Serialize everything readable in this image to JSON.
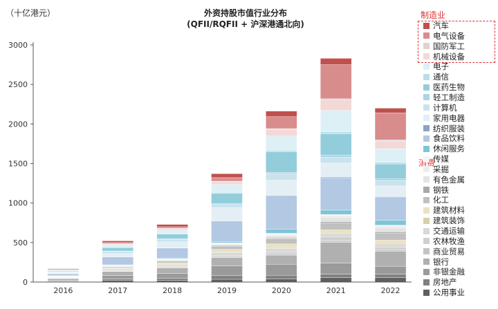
{
  "unit_label": "（十亿港元）",
  "title_line1": "外资持股市值行业分布",
  "title_line2": "(QFII/RQFII + 沪深港通北向)",
  "groups": {
    "manufacturing": "制造业",
    "consumer": "消费"
  },
  "chart_data": {
    "type": "bar",
    "stacked": true,
    "title": "外资持股市值行业分布 (QFII/RQFII + 沪深港通北向)",
    "ylabel": "（十亿港元）",
    "ylim": [
      0,
      3000
    ],
    "yticks": [
      0,
      500,
      1000,
      1500,
      2000,
      2500,
      3000
    ],
    "categories": [
      "2016",
      "2017",
      "2018",
      "2019",
      "2020",
      "2021",
      "2022"
    ],
    "series": [
      {
        "name": "公用事业",
        "color": "#5f5f5f",
        "values": [
          6,
          20,
          22,
          35,
          40,
          55,
          55
        ]
      },
      {
        "name": "房地产",
        "color": "#808080",
        "values": [
          5,
          18,
          25,
          45,
          45,
          45,
          45
        ]
      },
      {
        "name": "非银金融",
        "color": "#9a9a9a",
        "values": [
          12,
          45,
          60,
          125,
          140,
          140,
          100
        ]
      },
      {
        "name": "银行",
        "color": "#b0b0b0",
        "values": [
          20,
          50,
          70,
          105,
          115,
          260,
          190
        ]
      },
      {
        "name": "商业贸易",
        "color": "#c4c4c4",
        "values": [
          3,
          6,
          8,
          10,
          15,
          20,
          15
        ]
      },
      {
        "name": "农林牧渔",
        "color": "#d0d0d0",
        "values": [
          3,
          8,
          10,
          18,
          25,
          50,
          35
        ]
      },
      {
        "name": "交通运输",
        "color": "#d8d8d8",
        "values": [
          6,
          15,
          22,
          35,
          45,
          35,
          35
        ]
      },
      {
        "name": "建筑装饰",
        "color": "#d6cfa8",
        "values": [
          3,
          6,
          8,
          10,
          12,
          15,
          15
        ]
      },
      {
        "name": "建筑材料",
        "color": "#e8e2c4",
        "values": [
          5,
          10,
          18,
          30,
          45,
          40,
          40
        ]
      },
      {
        "name": "化工",
        "color": "#c0c0c0",
        "values": [
          5,
          12,
          20,
          40,
          65,
          90,
          90
        ]
      },
      {
        "name": "钢铁",
        "color": "#a8a8a8",
        "values": [
          3,
          6,
          8,
          8,
          10,
          15,
          15
        ]
      },
      {
        "name": "有色金属",
        "color": "#e4e4e4",
        "values": [
          3,
          6,
          8,
          15,
          30,
          55,
          55
        ]
      },
      {
        "name": "采掘",
        "color": "#ededed",
        "values": [
          2,
          5,
          8,
          10,
          15,
          20,
          20
        ]
      },
      {
        "name": "传媒",
        "color": "#f4f4f4",
        "values": [
          2,
          6,
          8,
          10,
          15,
          15,
          10
        ]
      },
      {
        "name": "休闲服务",
        "color": "#7ec4d8",
        "values": [
          2,
          6,
          10,
          15,
          50,
          55,
          60
        ]
      },
      {
        "name": "食品饮料",
        "color": "#b3c8e2",
        "values": [
          25,
          100,
          125,
          260,
          420,
          410,
          290
        ]
      },
      {
        "name": "纺织服装",
        "color": "#8aa4c8",
        "values": [
          1,
          3,
          4,
          5,
          10,
          10,
          10
        ]
      },
      {
        "name": "家用电器",
        "color": "#e3eff5",
        "values": [
          15,
          40,
          75,
          165,
          190,
          175,
          135
        ]
      },
      {
        "name": "计算机",
        "color": "#c9e3ed",
        "values": [
          5,
          25,
          30,
          40,
          85,
          75,
          70
        ]
      },
      {
        "name": "轻工制造",
        "color": "#a9d5e4",
        "values": [
          2,
          5,
          8,
          10,
          15,
          25,
          20
        ]
      },
      {
        "name": "医药生物",
        "color": "#93cddc",
        "values": [
          10,
          45,
          60,
          130,
          260,
          270,
          190
        ]
      },
      {
        "name": "通信",
        "color": "#b8dfe9",
        "values": [
          2,
          6,
          8,
          15,
          20,
          25,
          20
        ]
      },
      {
        "name": "电子",
        "color": "#ddf0f5",
        "values": [
          10,
          30,
          45,
          100,
          180,
          270,
          170
        ]
      },
      {
        "name": "机械设备",
        "color": "#f3d8d8",
        "values": [
          3,
          10,
          15,
          35,
          85,
          135,
          100
        ]
      },
      {
        "name": "国防军工",
        "color": "#e3d0d0",
        "values": [
          1,
          3,
          4,
          5,
          10,
          15,
          15
        ]
      },
      {
        "name": "电气设备",
        "color": "#d88c8c",
        "values": [
          5,
          15,
          20,
          45,
          150,
          430,
          340
        ]
      },
      {
        "name": "汽车",
        "color": "#c0504d",
        "values": [
          10,
          20,
          30,
          50,
          70,
          80,
          60
        ]
      }
    ],
    "legend_placement": "right",
    "grid": false
  }
}
